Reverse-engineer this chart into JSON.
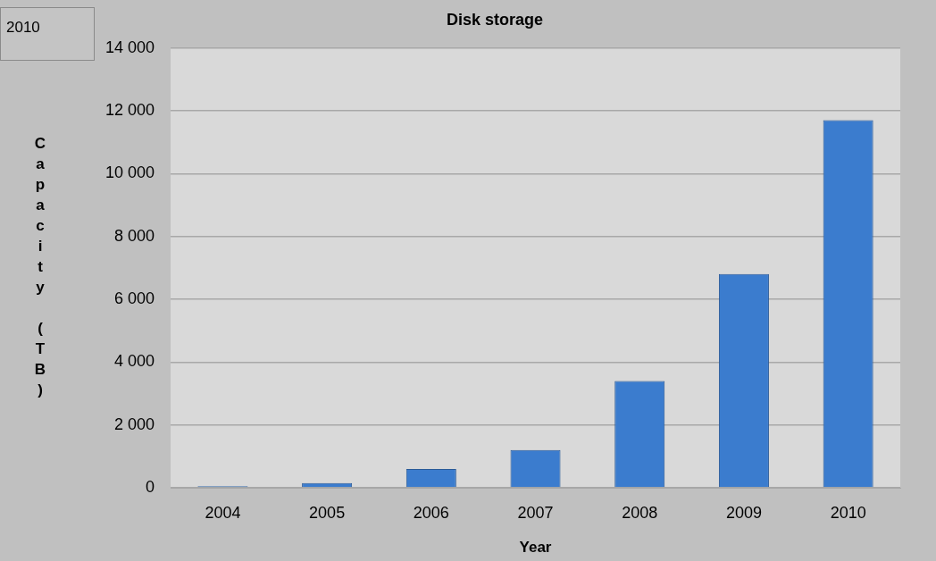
{
  "chart_data": {
    "type": "bar",
    "title": "Disk storage",
    "xlabel": "Year",
    "ylabel": "Capacity (TB)",
    "annotations": [
      "2010"
    ],
    "categories": [
      "2004",
      "2005",
      "2006",
      "2007",
      "2008",
      "2009",
      "2010"
    ],
    "values": [
      50,
      150,
      600,
      1200,
      3400,
      6800,
      11700
    ],
    "color": "#3b7cce",
    "ylim": [
      0,
      14000
    ],
    "yticks": [
      0,
      {
        "value": 2000,
        "label": "2 000"
      },
      {
        "value": 4000,
        "label": "4 000"
      },
      {
        "value": 6000,
        "label": "6 000"
      },
      {
        "value": 8000,
        "label": "8 000"
      },
      {
        "value": 10000,
        "label": "10 000"
      },
      {
        "value": 12000,
        "label": "12 000"
      },
      {
        "value": 14000,
        "label": "14 000"
      }
    ],
    "grid": "y",
    "legend": false
  }
}
